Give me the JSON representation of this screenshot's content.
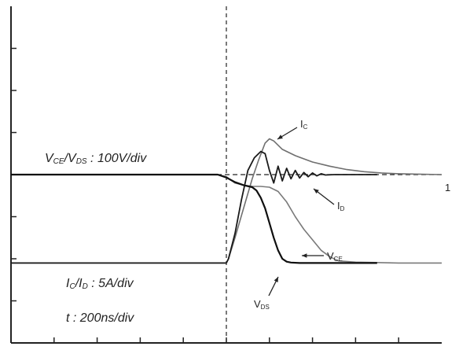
{
  "chart_data": {
    "type": "line",
    "title": "",
    "xlabel": "",
    "ylabel": "",
    "grid": false,
    "x_divisions": 10,
    "y_divisions": 8,
    "scale_labels": {
      "voltage": {
        "sym1": "V",
        "sub1": "CE",
        "sep": "/",
        "sym2": "V",
        "sub2": "DS",
        "value": " : 100V/div"
      },
      "current": {
        "sym1": "I",
        "sub1": "C",
        "sep": "/",
        "sym2": "I",
        "sub2": "D",
        "value": " : 5A/div"
      },
      "time": {
        "text": "t : 200ns/div"
      }
    },
    "reference_marker": "1",
    "x_unit": "div",
    "y_unit": "div",
    "series": [
      {
        "name": "IC",
        "label_sym": "I",
        "label_sub": "C",
        "color": "#6f6f6f",
        "x": [
          0,
          5.0,
          5.05,
          5.2,
          5.4,
          5.6,
          5.75,
          5.9,
          6.0,
          6.1,
          6.3,
          6.6,
          7.0,
          7.4,
          7.8,
          8.2,
          8.6,
          9.0,
          10
        ],
        "y": [
          1.9,
          1.9,
          2.0,
          2.5,
          3.2,
          3.9,
          4.35,
          4.75,
          4.85,
          4.8,
          4.6,
          4.45,
          4.3,
          4.2,
          4.12,
          4.07,
          4.04,
          4.02,
          4.0
        ]
      },
      {
        "name": "ID",
        "label_sym": "I",
        "label_sub": "D",
        "color": "#1a1a1a",
        "x": [
          0,
          5.0,
          5.05,
          5.2,
          5.35,
          5.5,
          5.65,
          5.8,
          5.9,
          6.0,
          6.1,
          6.2,
          6.3,
          6.4,
          6.5,
          6.6,
          6.7,
          6.8,
          6.9,
          7.0,
          7.1,
          7.2,
          7.3,
          7.5,
          8.0,
          8.5
        ],
        "y": [
          1.9,
          1.9,
          2.0,
          2.6,
          3.4,
          4.1,
          4.4,
          4.55,
          4.5,
          4.1,
          3.8,
          4.2,
          3.85,
          4.15,
          3.9,
          4.1,
          3.92,
          4.05,
          3.95,
          4.04,
          3.97,
          4.02,
          3.99,
          4.0,
          4.0,
          4.0
        ]
      },
      {
        "name": "VCE",
        "label_sym": "V",
        "label_sub": "CE",
        "color": "#7a7a7a",
        "x": [
          0,
          4.8,
          5.0,
          5.2,
          5.4,
          5.6,
          5.8,
          6.0,
          6.2,
          6.4,
          6.6,
          6.8,
          7.0,
          7.2,
          7.4,
          7.6,
          8.0,
          8.5,
          9.0,
          10
        ],
        "y": [
          4.0,
          4.0,
          3.95,
          3.8,
          3.75,
          3.72,
          3.72,
          3.7,
          3.6,
          3.35,
          3.0,
          2.7,
          2.45,
          2.2,
          2.05,
          1.95,
          1.92,
          1.91,
          1.9,
          1.9
        ]
      },
      {
        "name": "VDS",
        "label_sym": "V",
        "label_sub": "DS",
        "color": "#0f0f0f",
        "x": [
          0,
          4.8,
          5.0,
          5.2,
          5.4,
          5.6,
          5.7,
          5.8,
          5.9,
          6.0,
          6.1,
          6.2,
          6.3,
          6.4,
          6.5,
          6.7,
          7.0,
          7.5,
          8.0,
          8.5
        ],
        "y": [
          4.0,
          4.0,
          3.93,
          3.82,
          3.75,
          3.7,
          3.62,
          3.45,
          3.2,
          2.85,
          2.5,
          2.2,
          2.0,
          1.93,
          1.91,
          1.9,
          1.9,
          1.9,
          1.9,
          1.9
        ]
      }
    ],
    "reference_lines": {
      "zero_level_div": 4.0,
      "trigger_time_div": 5.0
    }
  }
}
